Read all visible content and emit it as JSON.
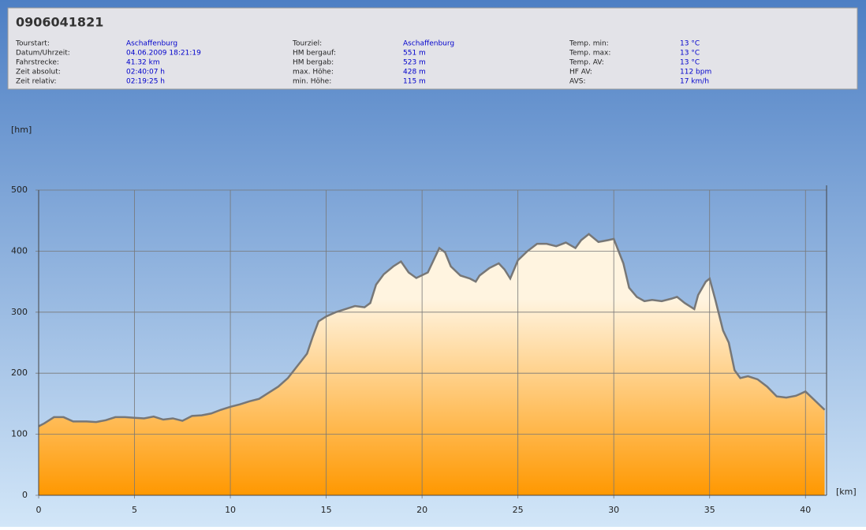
{
  "header": {
    "title": "0906041821",
    "columns": [
      [
        {
          "label": "Tourstart:",
          "value": "Aschaffenburg"
        },
        {
          "label": "Datum/Uhrzeit:",
          "value": "04.06.2009 18:21:19"
        },
        {
          "label": "Fahrstrecke:",
          "value": "41.32 km"
        },
        {
          "label": "Zeit absolut:",
          "value": "02:40:07 h"
        },
        {
          "label": "Zeit relativ:",
          "value": "02:19:25 h"
        }
      ],
      [
        {
          "label": "Tourziel:",
          "value": "Aschaffenburg"
        },
        {
          "label": "HM bergauf:",
          "value": "551 m"
        },
        {
          "label": "HM bergab:",
          "value": "523 m"
        },
        {
          "label": "max. Höhe:",
          "value": "428 m"
        },
        {
          "label": "min. Höhe:",
          "value": "115 m"
        }
      ],
      [
        {
          "label": "Temp. min:",
          "value": "13 °C"
        },
        {
          "label": "Temp. max:",
          "value": "13 °C"
        },
        {
          "label": "Temp. AV:",
          "value": "13 °C"
        },
        {
          "label": "HF AV:",
          "value": "112 bpm"
        },
        {
          "label": "AVS:",
          "value": "17 km/h"
        }
      ]
    ]
  },
  "chart_data": {
    "type": "area",
    "y_label": "[hm]",
    "x_label": "[km]",
    "xlim": [
      0,
      41.1
    ],
    "ylim": [
      0,
      500
    ],
    "xticks": [
      0,
      5,
      10,
      15,
      20,
      25,
      30,
      35,
      40
    ],
    "yticks": [
      0,
      100,
      200,
      300,
      400,
      500
    ],
    "grid": true,
    "x": [
      0,
      0.3,
      0.8,
      1.3,
      1.8,
      2.5,
      3,
      3.5,
      4,
      4.5,
      5,
      5.5,
      6,
      6.5,
      7,
      7.5,
      8,
      8.5,
      9,
      9.5,
      10,
      10.5,
      11,
      11.5,
      12,
      12.5,
      13,
      13.5,
      14,
      14.3,
      14.6,
      15,
      15.5,
      16,
      16.5,
      17,
      17.3,
      17.6,
      18,
      18.5,
      18.9,
      19.3,
      19.7,
      20.3,
      20.6,
      20.9,
      21.2,
      21.5,
      22,
      22.5,
      22.8,
      23,
      23.5,
      24,
      24.3,
      24.6,
      25,
      25.5,
      26,
      26.5,
      27,
      27.5,
      28,
      28.3,
      28.7,
      29.2,
      29.7,
      30,
      30.5,
      30.8,
      31.2,
      31.6,
      32,
      32.5,
      33,
      33.3,
      33.7,
      34.2,
      34.4,
      34.8,
      35,
      35.3,
      35.7,
      36,
      36.3,
      36.6,
      37,
      37.5,
      38,
      38.5,
      39,
      39.5,
      40,
      40.5,
      41
    ],
    "series": [
      {
        "color": "#777777",
        "values": [
          113,
          118,
          128,
          128,
          121,
          121,
          120,
          123,
          128,
          128,
          127,
          126,
          129,
          124,
          126,
          122,
          130,
          131,
          134,
          140,
          145,
          149,
          154,
          158,
          168,
          178,
          192,
          212,
          232,
          260,
          285,
          293,
          300,
          305,
          310,
          308,
          315,
          345,
          362,
          375,
          383,
          365,
          356,
          365,
          385,
          405,
          398,
          375,
          360,
          355,
          350,
          360,
          372,
          380,
          370,
          355,
          385,
          400,
          412,
          412,
          408,
          414,
          405,
          418,
          428,
          415,
          418,
          420,
          380,
          340,
          325,
          318,
          320,
          318,
          322,
          325,
          315,
          305,
          328,
          350,
          355,
          320,
          270,
          250,
          205,
          192,
          195,
          190,
          178,
          162,
          160,
          163,
          170,
          155,
          140
        ]
      }
    ]
  }
}
